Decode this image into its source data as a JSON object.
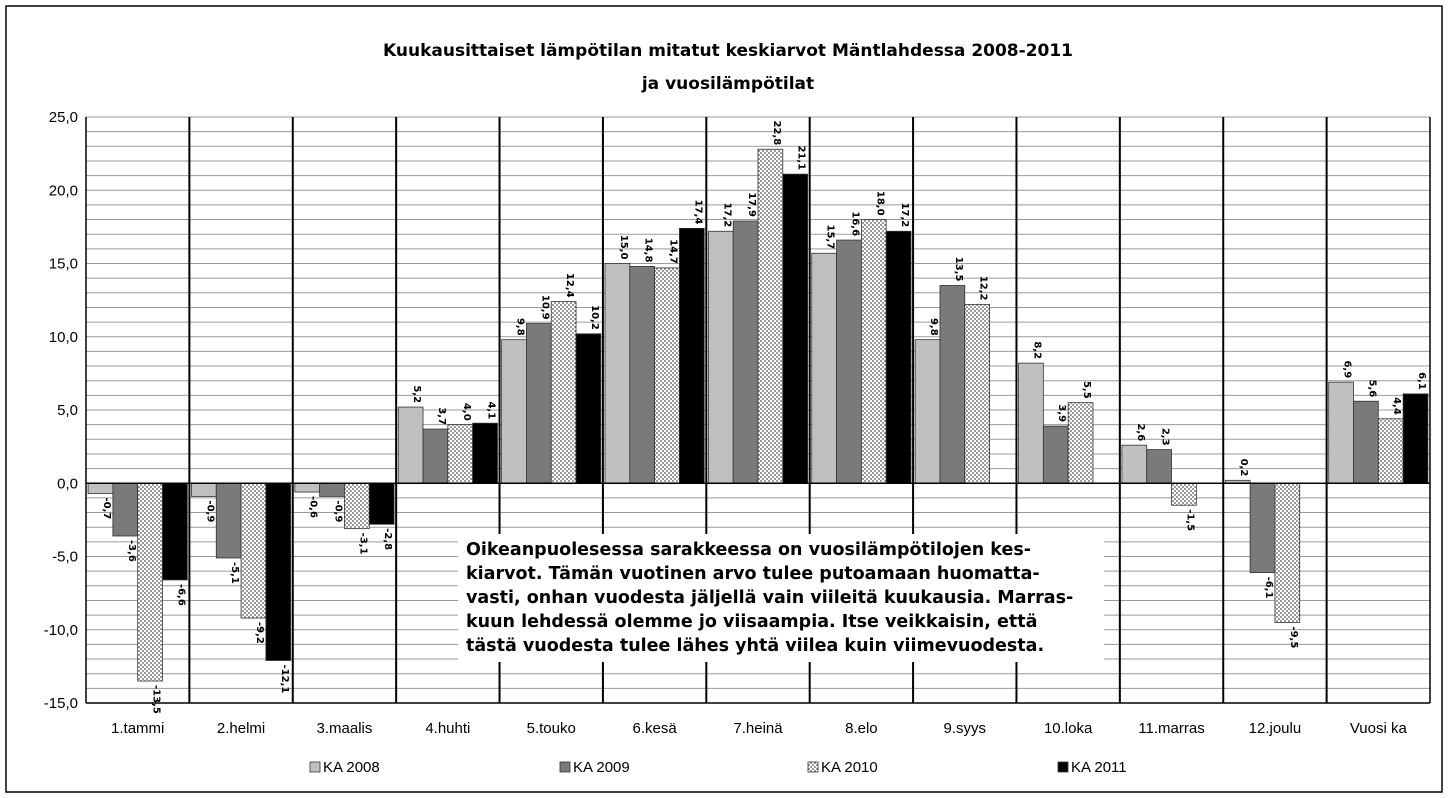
{
  "chart_data": {
    "type": "bar",
    "title_lines": [
      "Kuukausittaiset lämpötilan mitatut keskiarvot Mäntlahdessa 2008-2011",
      "ja vuosilämpötilat"
    ],
    "categories": [
      "1.tammi",
      "2.helmi",
      "3.maalis",
      "4.huhti",
      "5.touko",
      "6.kesä",
      "7.heinä",
      "8.elo",
      "9.syys",
      "10.loka",
      "11.marras",
      "12.joulu",
      "Vuosi ka"
    ],
    "series": [
      {
        "name": "KA 2008",
        "fill": "#c0c0c0",
        "pattern": "solid",
        "values": [
          -0.7,
          -0.9,
          -0.6,
          5.2,
          9.8,
          15.0,
          17.2,
          15.7,
          9.8,
          8.2,
          2.6,
          0.2,
          6.9
        ],
        "labels": [
          "-0,7",
          "-0,9",
          "-0,6",
          "5,2",
          "9,8",
          "15,0",
          "17,2",
          "15,7",
          "9,8",
          "8,2",
          "2,6",
          "0,2",
          "6,9"
        ]
      },
      {
        "name": "KA 2009",
        "fill": "#7a7a7a",
        "pattern": "solid",
        "values": [
          -3.6,
          -5.1,
          -0.9,
          3.7,
          10.9,
          14.8,
          17.9,
          16.6,
          13.5,
          3.9,
          2.3,
          -6.1,
          5.6
        ],
        "labels": [
          "-3,6",
          "-5,1",
          "-0,9",
          "3,7",
          "10,9",
          "14,8",
          "17,9",
          "16,6",
          "13,5",
          "3,9",
          "2,3",
          "-6,1",
          "5,6"
        ]
      },
      {
        "name": "KA 2010",
        "fill": "#f2f2f2",
        "pattern": "dots",
        "values": [
          -13.5,
          -9.2,
          -3.1,
          4.0,
          12.4,
          14.7,
          22.8,
          18.0,
          12.2,
          5.5,
          -1.5,
          -9.5,
          4.4
        ],
        "labels": [
          "-13,5",
          "-9,2",
          "-3,1",
          "4,0",
          "12,4",
          "14,7",
          "22,8",
          "18,0",
          "12,2",
          "5,5",
          "-1,5",
          "-9,5",
          "4,4"
        ]
      },
      {
        "name": "KA 2011",
        "fill": "#000000",
        "pattern": "solid",
        "values": [
          -6.6,
          -12.1,
          -2.8,
          4.1,
          10.2,
          17.4,
          21.1,
          17.2,
          null,
          null,
          null,
          null,
          6.1
        ],
        "labels": [
          "-6,6",
          "-12,1",
          "-2,8",
          "4,1",
          "10,2",
          "17,4",
          "21,1",
          "17,2",
          null,
          null,
          null,
          null,
          "6,1"
        ]
      }
    ],
    "ylim": [
      -15,
      25
    ],
    "y_ticks": [
      "25,0",
      "20,0",
      "15,0",
      "10,0",
      "5,0",
      "0,0",
      "-5,0",
      "-10,0",
      "-15,0"
    ],
    "y_minor_step": 1,
    "legend": {
      "position": "bottom"
    },
    "grid": true
  },
  "note": {
    "lines": [
      "Oikeanpuolesessa sarakkeessa on vuosilämpötilojen kes-",
      "kiarvot. Tämän vuotinen arvo tulee putoamaan huomatta-",
      "vasti, onhan vuodesta jäljellä vain viileitä kuukausia. Marras-",
      "kuun lehdessä olemme jo viisaampia. Itse veikkaisin, että",
      "tästä vuodesta tulee lähes yhtä viilea kuin viimevuodesta."
    ]
  }
}
